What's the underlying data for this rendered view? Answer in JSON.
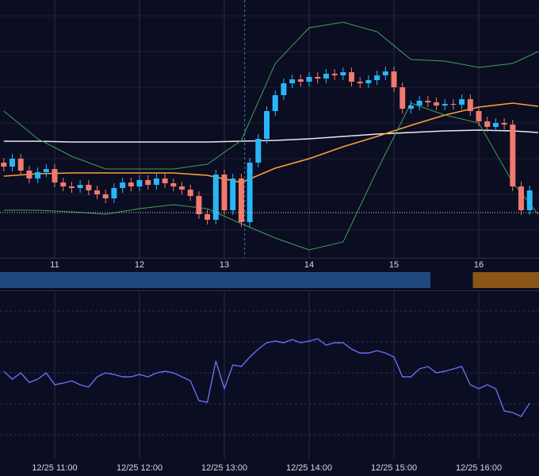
{
  "chart_data": {
    "type": "candlestick",
    "x": [
      10.4,
      10.5,
      10.6,
      10.7,
      10.8,
      10.9,
      11.0,
      11.1,
      11.2,
      11.3,
      11.4,
      11.5,
      11.6,
      11.7,
      11.8,
      11.9,
      12.0,
      12.1,
      12.2,
      12.3,
      12.4,
      12.5,
      12.6,
      12.7,
      12.8,
      12.9,
      13.0,
      13.1,
      13.2,
      13.3,
      13.4,
      13.5,
      13.6,
      13.7,
      13.8,
      13.9,
      14.0,
      14.1,
      14.2,
      14.3,
      14.4,
      14.5,
      14.6,
      14.7,
      14.8,
      14.9,
      15.0,
      15.1,
      15.2,
      15.3,
      15.4,
      15.5,
      15.6,
      15.7,
      15.8,
      15.9,
      16.0,
      16.1,
      16.2,
      16.3,
      16.4,
      16.5,
      16.6
    ],
    "open": [
      120,
      115,
      125,
      110,
      100,
      108,
      112,
      95,
      90,
      88,
      92,
      85,
      80,
      75,
      88,
      95,
      90,
      98,
      92,
      100,
      94,
      90,
      86,
      78,
      55,
      48,
      105,
      60,
      100,
      45,
      120,
      150,
      185,
      205,
      220,
      225,
      222,
      228,
      226,
      232,
      230,
      234,
      222,
      220,
      224,
      230,
      235,
      215,
      188,
      192,
      198,
      196,
      192,
      194,
      193,
      200,
      185,
      172,
      165,
      170,
      168,
      90,
      60
    ],
    "high": [
      126,
      131,
      131,
      116,
      114,
      118,
      118,
      101,
      96,
      98,
      98,
      91,
      86,
      94,
      101,
      101,
      104,
      104,
      106,
      106,
      100,
      96,
      92,
      84,
      61,
      111,
      111,
      106,
      106,
      126,
      156,
      191,
      211,
      226,
      231,
      231,
      234,
      234,
      238,
      238,
      240,
      240,
      228,
      230,
      236,
      241,
      241,
      221,
      198,
      204,
      204,
      202,
      200,
      200,
      206,
      206,
      191,
      178,
      176,
      176,
      174,
      96,
      91
    ],
    "low": [
      109,
      109,
      104,
      94,
      94,
      102,
      89,
      84,
      82,
      82,
      79,
      74,
      69,
      69,
      82,
      84,
      84,
      86,
      86,
      88,
      84,
      80,
      72,
      49,
      42,
      42,
      54,
      54,
      39,
      39,
      114,
      144,
      179,
      199,
      214,
      216,
      216,
      220,
      220,
      224,
      224,
      216,
      214,
      214,
      218,
      224,
      209,
      182,
      182,
      186,
      190,
      186,
      186,
      187,
      187,
      179,
      166,
      159,
      159,
      162,
      84,
      54,
      54
    ],
    "close": [
      115,
      125,
      110,
      100,
      108,
      112,
      95,
      90,
      88,
      92,
      85,
      80,
      75,
      88,
      95,
      90,
      98,
      92,
      100,
      94,
      90,
      86,
      78,
      55,
      48,
      105,
      60,
      100,
      45,
      120,
      150,
      185,
      205,
      220,
      225,
      222,
      228,
      226,
      232,
      230,
      234,
      222,
      220,
      224,
      230,
      235,
      215,
      188,
      192,
      198,
      196,
      192,
      194,
      193,
      200,
      185,
      172,
      165,
      170,
      168,
      90,
      60,
      85
    ],
    "up_color": "#29b6f6",
    "down_color": "#f07a6e",
    "xlim": [
      10.355,
      16.71
    ],
    "ylim": [
      0,
      325
    ],
    "xticks": [
      11,
      12,
      13,
      14,
      15,
      16
    ],
    "ygrid": [
      305,
      260,
      215,
      170,
      125,
      80,
      35
    ],
    "overlays": {
      "x": [
        10.4,
        10.8,
        11.2,
        11.6,
        12.0,
        12.4,
        12.8,
        13.2,
        13.6,
        14.0,
        14.4,
        14.8,
        15.2,
        15.6,
        16.0,
        16.4,
        16.7
      ],
      "series": [
        {
          "color": "#e8e8ec",
          "values": [
            147,
            147,
            146,
            146,
            146,
            146,
            146,
            147,
            148,
            150,
            153,
            156,
            158,
            160,
            161,
            160,
            158
          ]
        },
        {
          "color": "#f7a234",
          "values": [
            103,
            106,
            107,
            107,
            107,
            107,
            104,
            95,
            113,
            125,
            140,
            153,
            167,
            180,
            190,
            195,
            191
          ]
        },
        {
          "color": "#3fa05a",
          "values": [
            185,
            150,
            128,
            112,
            112,
            112,
            118,
            148,
            245,
            290,
            297,
            285,
            250,
            248,
            240,
            245,
            260
          ]
        },
        {
          "color": "#3fa05a",
          "values": [
            60,
            60,
            58,
            55,
            62,
            67,
            62,
            43,
            25,
            10,
            20,
            110,
            195,
            180,
            170,
            95,
            55
          ]
        }
      ]
    },
    "price_line": {
      "value": 57,
      "color": "#cfd2dc"
    },
    "crosshair_x": 13.24,
    "sessions": [
      {
        "start": 10.355,
        "end": 15.43,
        "color": "#21497e"
      },
      {
        "start": 15.93,
        "end": 16.71,
        "color": "#8a5716"
      }
    ],
    "indicator": {
      "type": "line",
      "color": "#6470f0",
      "values": [
        110,
        100,
        108,
        96,
        100,
        108,
        93,
        95,
        98,
        93,
        90,
        103,
        108,
        106,
        103,
        103,
        106,
        103,
        108,
        110,
        108,
        103,
        98,
        73,
        71,
        123,
        88,
        118,
        116,
        128,
        138,
        146,
        148,
        146,
        150,
        146,
        148,
        151,
        143,
        146,
        146,
        138,
        133,
        133,
        136,
        133,
        128,
        103,
        103,
        113,
        116,
        108,
        110,
        113,
        116,
        93,
        88,
        93,
        88,
        60,
        58,
        53,
        70
      ],
      "ylim": [
        0,
        210
      ],
      "ygrid": [
        186,
        147,
        108,
        69,
        30
      ],
      "xticks": [
        {
          "value": 11,
          "label": "12/25 11:00"
        },
        {
          "value": 12,
          "label": "12/25 12:00"
        },
        {
          "value": 13,
          "label": "12/25 13:00"
        },
        {
          "value": 14,
          "label": "12/25 14:00"
        },
        {
          "value": 15,
          "label": "12/25 15:00"
        },
        {
          "value": 16,
          "label": "12/25 16:00"
        }
      ]
    }
  }
}
